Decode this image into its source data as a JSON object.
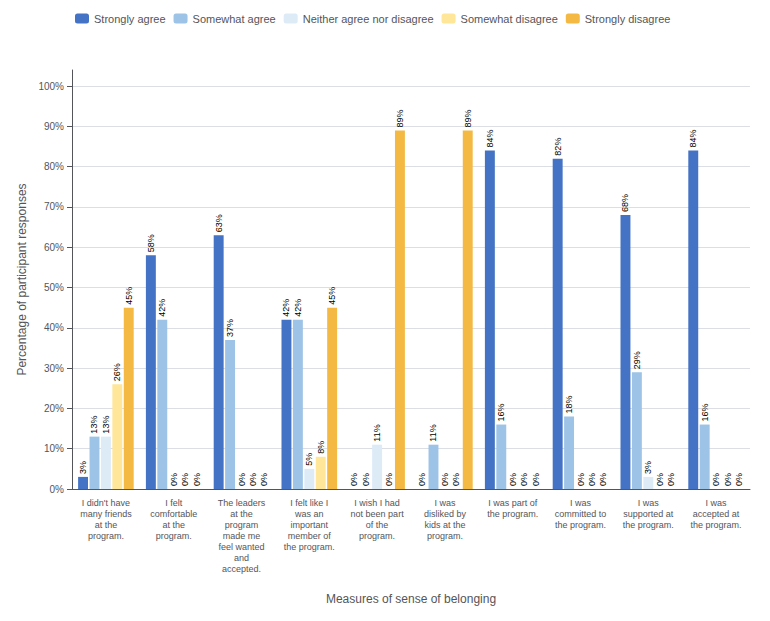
{
  "chart_data": {
    "type": "bar",
    "xlabel": "Measures of sense of belonging",
    "ylabel": "Percentage of participant responses",
    "categories": [
      "I didn't have\nmany friends\nat the\nprogram.",
      "I felt\ncomfortable\nat the\nprogram.",
      "The leaders\nat the\nprogram\nmade me\nfeel wanted\nand\naccepted.",
      "I felt like I\nwas an\nimportant\nmember of\nthe program.",
      "I wish I had\nnot been part\nof the\nprogram.",
      "I was\ndisliked by\nkids at the\nprogram.",
      "I was part of\nthe program.",
      "I was\ncommitted to\nthe program.",
      "I was\nsupported at\nthe program.",
      "I was\naccepted at\nthe program."
    ],
    "series": [
      {
        "name": "Strongly agree",
        "color": "#4472C4",
        "values": [
          3,
          58,
          63,
          42,
          0,
          0,
          84,
          82,
          68,
          84
        ],
        "value_labels": [
          "3%",
          "58%",
          "63%",
          "42%",
          "0%",
          "0%",
          "84%",
          "82%",
          "68%",
          "84%"
        ]
      },
      {
        "name": "Somewhat agree",
        "color": "#9DC3E6",
        "values": [
          13,
          42,
          37,
          42,
          0,
          11,
          16,
          18,
          29,
          16
        ],
        "value_labels": [
          "13%",
          "42%",
          "37%",
          "42%",
          "0%",
          "11%",
          "16%",
          "18%",
          "29%",
          "16%"
        ]
      },
      {
        "name": "Neither agree nor disagree",
        "color": "#DDEBF7",
        "values": [
          13,
          0,
          0,
          5,
          11,
          0,
          0,
          0,
          3,
          0
        ],
        "value_labels": [
          "13%",
          "0%",
          "0%",
          "5%",
          "11%",
          "0%",
          "0%",
          "0%",
          "3%",
          "0%"
        ]
      },
      {
        "name": "Somewhat disagree",
        "color": "#FFE699",
        "values": [
          26,
          0,
          0,
          8,
          0,
          0,
          0,
          0,
          0,
          0
        ],
        "value_labels": [
          "26%",
          "0%",
          "0%",
          "8%",
          "0%",
          "0%",
          "0%",
          "0%",
          "0%",
          "0%"
        ]
      },
      {
        "name": "Strongly disagree",
        "color": "#F4B942",
        "values": [
          45,
          0,
          0,
          45,
          89,
          89,
          0,
          0,
          0,
          0
        ],
        "value_labels": [
          "45%",
          "0%",
          "0%",
          "45%",
          "89%",
          "89%",
          "0%",
          "0%",
          "0%",
          "0%"
        ]
      }
    ],
    "ylim": [
      0,
      104
    ],
    "yticks": [
      {
        "value": 0,
        "label": "0%"
      },
      {
        "value": 10,
        "label": "10%"
      },
      {
        "value": 20,
        "label": "20%"
      },
      {
        "value": 30,
        "label": "30%"
      },
      {
        "value": 40,
        "label": "40%"
      },
      {
        "value": 50,
        "label": "50%"
      },
      {
        "value": 60,
        "label": "60%"
      },
      {
        "value": 70,
        "label": "70%"
      },
      {
        "value": 80,
        "label": "80%"
      },
      {
        "value": 90,
        "label": "90%"
      },
      {
        "value": 100,
        "label": "100%"
      }
    ],
    "grid": true,
    "legend": "upper left",
    "data_labels": true
  }
}
